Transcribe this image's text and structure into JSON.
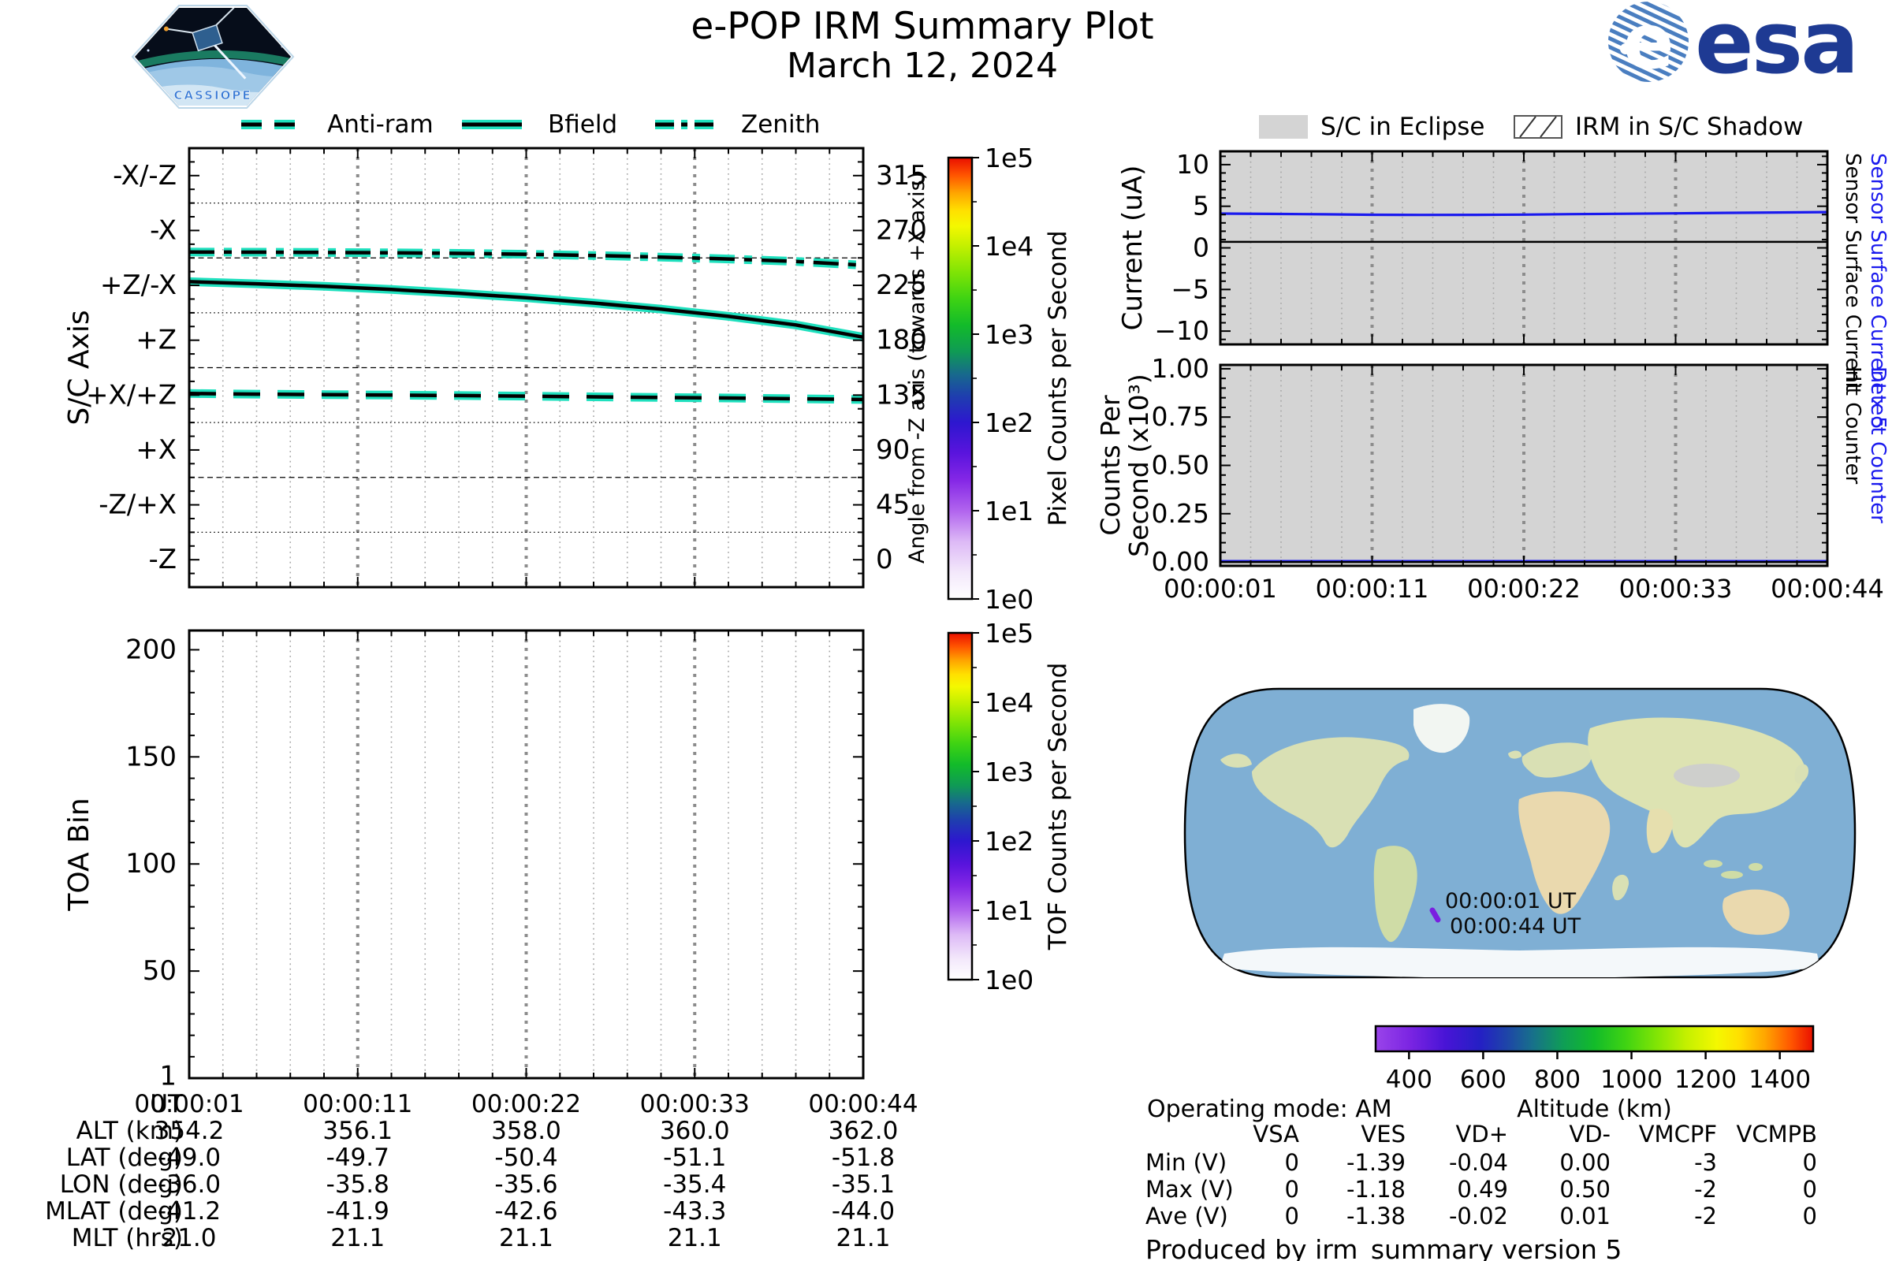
{
  "header": {
    "title": "e-POP IRM Summary Plot",
    "date": "March 12, 2024",
    "cassiope_label": "CASSIOPE",
    "esa_label": "esa"
  },
  "legend_left": {
    "items": [
      {
        "label": "Anti-ram",
        "style": "dashed"
      },
      {
        "label": "Bfield",
        "style": "solid"
      },
      {
        "label": "Zenith",
        "style": "dashdot"
      }
    ],
    "line_outline_color": "#1fe0be",
    "line_core_color": "#000000"
  },
  "legend_right": {
    "items": [
      {
        "label": "S/C in Eclipse",
        "swatch": "gray-fill"
      },
      {
        "label": "IRM in S/C Shadow",
        "swatch": "diagonal-hatch"
      }
    ],
    "eclipse_color": "#d4d4d4"
  },
  "chart_data": [
    {
      "id": "sc_axis",
      "type": "line",
      "ylabel_left": "S/C Axis",
      "ylabel_right": "Angle from -Z axis (towards +X axis)",
      "yticks_left": [
        "-X/-Z",
        "-X",
        "+Z/-X",
        "+Z",
        "+X/+Z",
        "+X",
        "-Z/+X",
        "-Z"
      ],
      "yticks_right": [
        "315",
        "270",
        "225",
        "180",
        "135",
        "90",
        "45",
        "0"
      ],
      "ytick_values": [
        315,
        270,
        225,
        180,
        135,
        90,
        45,
        0
      ],
      "ylim": [
        -22.5,
        337.5
      ],
      "grid": "on",
      "series": [
        {
          "name": "Anti-ram",
          "style": "dashed",
          "x": [
            0,
            0.1,
            0.2,
            0.3,
            0.4,
            0.5,
            0.6,
            0.7,
            0.8,
            0.9,
            1
          ],
          "y": [
            136.3,
            135.8,
            135.4,
            135.0,
            134.6,
            134.1,
            133.6,
            133.1,
            132.6,
            132.0,
            131.4
          ]
        },
        {
          "name": "Bfield",
          "style": "solid",
          "x": [
            0,
            0.1,
            0.2,
            0.3,
            0.4,
            0.5,
            0.6,
            0.7,
            0.8,
            0.9,
            1
          ],
          "y": [
            228,
            226.3,
            224.2,
            221.6,
            218.5,
            214.8,
            210.5,
            205.5,
            199.6,
            192.5,
            182.5
          ]
        },
        {
          "name": "Zenith",
          "style": "dashdot",
          "x": [
            0,
            0.1,
            0.2,
            0.3,
            0.4,
            0.5,
            0.6,
            0.7,
            0.8,
            0.9,
            1
          ],
          "y": [
            252.3,
            252.2,
            252.0,
            251.7,
            251.2,
            250.5,
            249.5,
            248.2,
            246.6,
            244.6,
            241.5
          ]
        }
      ]
    },
    {
      "id": "toa",
      "type": "line",
      "ylabel": "TOA Bin",
      "yticks": [
        "200",
        "150",
        "100",
        "50",
        "1"
      ],
      "ytick_values": [
        200,
        150,
        100,
        50,
        1
      ],
      "ylim": [
        0,
        209
      ],
      "series": []
    },
    {
      "id": "current",
      "type": "line",
      "ylabel": "Current (uA)",
      "yticks": [
        "10",
        "5",
        "0",
        "−5",
        "−10"
      ],
      "ytick_values": [
        10,
        5,
        0,
        -5,
        -10
      ],
      "ylim": [
        -11.6,
        11.6
      ],
      "right_labels": [
        {
          "text": "Sensor Surface Current x 5",
          "color": "#1a1aee"
        },
        {
          "text": "Sensor Surface Current",
          "color": "#000000"
        }
      ],
      "series": [
        {
          "name": "Sensor Surface Current x 5",
          "color": "#1a1aee",
          "x": [
            0,
            0.08,
            0.17,
            0.25,
            0.33,
            0.42,
            0.5,
            0.58,
            0.67,
            0.75,
            0.83,
            0.92,
            1
          ],
          "y": [
            4.12,
            4.08,
            4.03,
            3.98,
            3.96,
            3.97,
            4.0,
            4.05,
            4.1,
            4.15,
            4.2,
            4.25,
            4.3
          ]
        },
        {
          "name": "Sensor Surface Current",
          "color": "#000000",
          "x": [
            0,
            1
          ],
          "y": [
            0.72,
            0.72
          ]
        }
      ]
    },
    {
      "id": "counts",
      "type": "line",
      "ylabel_line1": "Counts Per",
      "ylabel_line2": "Second (x10³)",
      "yticks": [
        "1.00",
        "0.75",
        "0.50",
        "0.25",
        "0.00"
      ],
      "ytick_values": [
        1.0,
        0.75,
        0.5,
        0.25,
        0.0
      ],
      "ylim": [
        -0.02,
        1.02
      ],
      "xticks": [
        "00:00:01",
        "00:00:11",
        "00:00:22",
        "00:00:33",
        "00:00:44"
      ],
      "right_labels": [
        {
          "text": "Detect Counter",
          "color": "#1a1aee"
        },
        {
          "text": "Hit Counter",
          "color": "#000000"
        }
      ],
      "series": [
        {
          "name": "Detect Counter",
          "color": "#1a1aee",
          "x": [
            0,
            1
          ],
          "y": [
            0.004,
            0.004
          ]
        },
        {
          "name": "Hit Counter",
          "color": "#000000",
          "x": [
            0,
            1
          ],
          "y": [
            0.0,
            0.0
          ]
        }
      ]
    },
    {
      "id": "pixel_colorbar",
      "type": "colorbar",
      "label": "Pixel Counts per Second",
      "ticks": [
        "1e5",
        "1e4",
        "1e3",
        "1e2",
        "1e1",
        "1e0"
      ],
      "scale": "log"
    },
    {
      "id": "tof_colorbar",
      "type": "colorbar",
      "label": "TOF Counts per Second",
      "ticks": [
        "1e5",
        "1e4",
        "1e3",
        "1e2",
        "1e1",
        "1e0"
      ],
      "scale": "log"
    },
    {
      "id": "altitude_colorbar",
      "type": "colorbar",
      "label": "Altitude (km)",
      "ticks": [
        "400",
        "600",
        "800",
        "1000",
        "1200",
        "1400"
      ],
      "tick_values": [
        400,
        600,
        800,
        1000,
        1200,
        1400
      ],
      "range": [
        310,
        1490
      ],
      "scale": "linear"
    }
  ],
  "ground_track": {
    "start_label": "00:00:01 UT",
    "end_label": "00:00:44 UT",
    "marker_color": "#7a1fe0"
  },
  "ephemeris_table": {
    "row_labels": [
      "UT",
      "ALT (km)",
      "LAT (deg)",
      "LON (deg)",
      "MLAT (deg)",
      "MLT (hrs)"
    ],
    "rows": [
      [
        "00:00:01",
        "00:00:11",
        "00:00:22",
        "00:00:33",
        "00:00:44"
      ],
      [
        "354.2",
        "356.1",
        "358.0",
        "360.0",
        "362.0"
      ],
      [
        "-49.0",
        "-49.7",
        "-50.4",
        "-51.1",
        "-51.8"
      ],
      [
        "-36.0",
        "-35.8",
        "-35.6",
        "-35.4",
        "-35.1"
      ],
      [
        "-41.2",
        "-41.9",
        "-42.6",
        "-43.3",
        "-44.0"
      ],
      [
        "21.0",
        "21.1",
        "21.1",
        "21.1",
        "21.1"
      ]
    ]
  },
  "status": {
    "operating_mode": "Operating mode: AM",
    "produced_by": "Produced by irm_summary version 5"
  },
  "voltage_table": {
    "columns": [
      "VSA",
      "VES",
      "VD+",
      "VD-",
      "VMCPF",
      "VCMPB"
    ],
    "rows": [
      {
        "label": "Min (V)",
        "values": [
          "0",
          "-1.39",
          "-0.04",
          "0.00",
          "-3",
          "0"
        ]
      },
      {
        "label": "Max (V)",
        "values": [
          "0",
          "-1.18",
          "0.49",
          "0.50",
          "-2",
          "0"
        ]
      },
      {
        "label": "Ave (V)",
        "values": [
          "0",
          "-1.38",
          "-0.02",
          "0.01",
          "-2",
          "0"
        ]
      }
    ]
  }
}
